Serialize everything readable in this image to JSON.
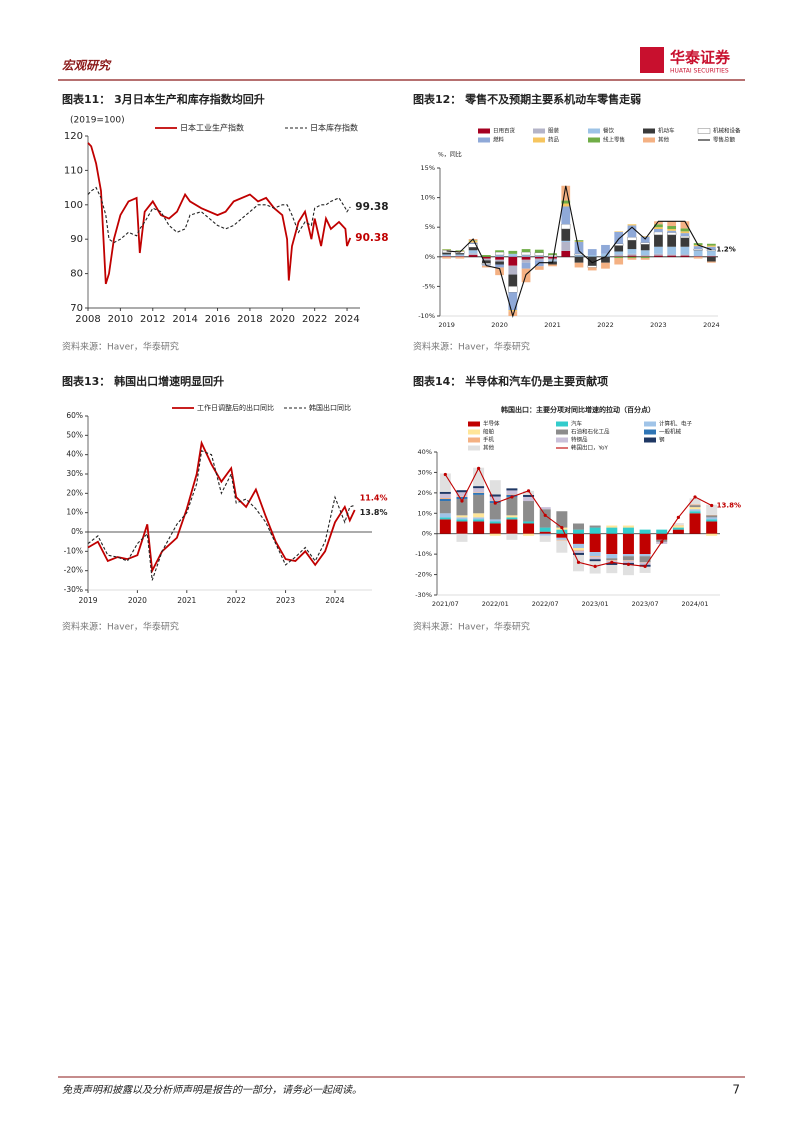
{
  "header": {
    "section": "宏观研究",
    "logo": "华泰证券",
    "logo_en": "HUATAI SECURITIES"
  },
  "footer": {
    "disclaimer": "免责声明和披露以及分析师声明是报告的一部分，请务必一起阅读。",
    "page": "7"
  },
  "chart_data": [
    {
      "type": "line",
      "title": "图表11： 3月日本生产和库存指数均回升",
      "subtitle": "(2019=100)",
      "source": "资料来源：Haver，华泰研究",
      "end_labels": true,
      "x": [
        2008,
        2008.2,
        2008.5,
        2008.8,
        2009.1,
        2009.3,
        2009.6,
        2010,
        2010.5,
        2011,
        2011.2,
        2011.5,
        2012,
        2012.5,
        2013,
        2013.5,
        2014,
        2014.3,
        2015,
        2016,
        2016.5,
        2017,
        2018,
        2018.5,
        2019,
        2019.5,
        2020,
        2020.3,
        2020.4,
        2020.6,
        2021,
        2021.4,
        2021.8,
        2022,
        2022.4,
        2022.7,
        2023,
        2023.5,
        2023.9,
        2024,
        2024.2
      ],
      "series": [
        {
          "name": "日本工业生产指数",
          "color": "#c00000",
          "values": [
            118,
            117,
            112,
            104,
            77,
            80,
            90,
            97,
            101,
            102,
            86,
            98,
            101,
            97,
            96,
            98,
            103,
            101,
            99,
            97,
            98,
            101,
            103,
            101,
            102,
            99,
            97,
            90,
            78,
            88,
            95,
            98,
            90,
            96,
            88,
            96,
            93,
            95,
            93,
            88,
            90.38
          ]
        },
        {
          "name": "日本库存指数",
          "color": "#222222",
          "dash": true,
          "values": [
            103,
            104,
            105,
            102,
            97,
            90,
            89,
            90,
            92,
            91,
            93,
            95,
            99,
            98,
            94,
            92,
            93,
            97,
            98,
            94,
            93,
            94,
            98,
            100,
            100,
            99,
            100,
            100,
            99,
            97,
            92,
            95,
            94,
            99,
            100,
            100,
            101,
            102,
            99,
            98,
            99.38
          ]
        }
      ],
      "xlim": [
        2008,
        2024.8
      ],
      "xticks": [
        2008,
        2010,
        2012,
        2014,
        2016,
        2018,
        2020,
        2022,
        2024
      ],
      "ylim": [
        70,
        120
      ],
      "yticks": [
        70,
        80,
        90,
        100,
        110,
        120
      ]
    },
    {
      "type": "bar",
      "stacked": true,
      "title": "图表12： 零售不及预期主要系机动车零售走弱",
      "subtitle": "%，同比",
      "source": "资料来源：Haver，华泰研究",
      "end_labels": true,
      "categories": [
        "2019",
        null,
        null,
        null,
        "2020",
        null,
        null,
        null,
        "2021",
        null,
        null,
        null,
        "2022",
        null,
        null,
        null,
        "2023",
        null,
        null,
        null,
        "2024"
      ],
      "series": [
        {
          "name": "日用百货",
          "color": "#a50021",
          "values": [
            0.1,
            0.1,
            0.3,
            -0.3,
            -0.5,
            -1.5,
            -0.5,
            -0.3,
            -0.3,
            1,
            0,
            0,
            0,
            0.1,
            0.2,
            0.1,
            0.2,
            0.2,
            0.2,
            0.1,
            0.1
          ]
        },
        {
          "name": "服装",
          "color": "#b4b4c8",
          "values": [
            0,
            0,
            0.3,
            -0.3,
            -0.3,
            -1.5,
            -0.5,
            -0.3,
            -0.3,
            1.5,
            0,
            0,
            0,
            0.3,
            0.3,
            0.2,
            0.3,
            0.2,
            0.2,
            0,
            0.1
          ]
        },
        {
          "name": "餐饮",
          "color": "#9dc3e6",
          "values": [
            0.3,
            0.3,
            0.5,
            0,
            0.3,
            0.5,
            0.3,
            0.2,
            -0.2,
            0.2,
            0.3,
            0.3,
            0.5,
            0.5,
            0.8,
            0.8,
            1.2,
            1.3,
            1.3,
            1,
            0.8
          ]
        },
        {
          "name": "机动车",
          "color": "#3a3a3a",
          "values": [
            0.3,
            0.2,
            0.5,
            -0.5,
            -0.5,
            -2,
            0,
            0,
            -0.5,
            2,
            -1,
            -1.5,
            -1,
            1,
            1.5,
            1,
            2,
            2,
            1.5,
            0,
            -0.8
          ]
        },
        {
          "name": "机械和设备",
          "color": "#ffffff",
          "values": [
            0.3,
            0.3,
            0.6,
            -0.2,
            0.5,
            -1,
            0.5,
            0.5,
            0.3,
            0.8,
            0.2,
            -0.3,
            0,
            0.3,
            0.5,
            0.3,
            0.5,
            0.4,
            0.3,
            0.2,
            0.2
          ]
        },
        {
          "name": "燃料",
          "color": "#8fa9d8",
          "values": [
            0.1,
            0,
            0.2,
            -0.2,
            -0.5,
            -3,
            -1,
            -1,
            0,
            3,
            2,
            1,
            1.5,
            2,
            2,
            1,
            0.5,
            0.3,
            0.5,
            0.5,
            0.5
          ]
        },
        {
          "name": "药品",
          "color": "#f6c55f",
          "values": [
            0.1,
            0.1,
            0.3,
            0,
            0,
            -0.2,
            0,
            0,
            0,
            0.5,
            0.1,
            0,
            0,
            0.1,
            0.2,
            0.1,
            0.3,
            0.3,
            0.3,
            0.2,
            0.2
          ]
        },
        {
          "name": "线上零售",
          "color": "#70ad47",
          "values": [
            0.1,
            0.1,
            0.1,
            0.3,
            0.3,
            0.5,
            0.5,
            0.5,
            0.3,
            0.5,
            0.2,
            0,
            0,
            -0.2,
            -0.2,
            -0.2,
            0.5,
            0.5,
            0.5,
            0.3,
            0.3
          ]
        },
        {
          "name": "其他",
          "color": "#f4b183",
          "values": [
            -0.3,
            -0.3,
            0.2,
            -0.3,
            -1.3,
            -0.8,
            -2.3,
            -0.6,
            -0.3,
            2.5,
            -0.8,
            -0.5,
            -1,
            -1.1,
            -0.3,
            -0.3,
            0.5,
            0.8,
            1.2,
            -0.3,
            -0.2
          ]
        },
        {
          "name": "零售总额",
          "color": "#111111",
          "type": "line",
          "values": [
            1,
            0.8,
            3,
            -1.5,
            -2,
            -10,
            -3,
            -1,
            -1,
            12,
            1,
            -1,
            0,
            3,
            5,
            3,
            6,
            6,
            6,
            2,
            1.2
          ],
          "value_labels": [
            null,
            null,
            null,
            null,
            null,
            null,
            null,
            null,
            null,
            null,
            null,
            null,
            null,
            null,
            null,
            null,
            null,
            null,
            null,
            null,
            "1.2%"
          ]
        }
      ],
      "ylim": [
        -10,
        15
      ],
      "yticks": [
        {
          "value": -10,
          "label": "-10%"
        },
        {
          "value": -5,
          "label": "-5%"
        },
        {
          "value": 0,
          "label": "0%"
        },
        {
          "value": 5,
          "label": "5%"
        },
        {
          "value": 10,
          "label": "10%"
        },
        {
          "value": 15,
          "label": "15%"
        }
      ]
    },
    {
      "type": "line",
      "title": "图表13： 韩国出口增速明显回升",
      "source": "资料来源：Haver，华泰研究",
      "end_labels": true,
      "x": [
        2019,
        2019.2,
        2019.4,
        2019.6,
        2019.8,
        2020,
        2020.2,
        2020.3,
        2020.5,
        2020.8,
        2021,
        2021.2,
        2021.3,
        2021.5,
        2021.7,
        2021.9,
        2022,
        2022.2,
        2022.4,
        2022.6,
        2022.8,
        2023,
        2023.2,
        2023.4,
        2023.6,
        2023.8,
        2024,
        2024.2,
        2024.3,
        2024.4
      ],
      "series": [
        {
          "name": "工作日调整后的出口同比",
          "color": "#c00000",
          "values": [
            -8,
            -5,
            -15,
            -13,
            -14,
            -12,
            4,
            -20,
            -10,
            -3,
            12,
            30,
            46,
            35,
            26,
            33,
            18,
            13,
            22,
            8,
            -5,
            -14,
            -15,
            -10,
            -17,
            -10,
            5,
            13,
            6,
            11.4
          ],
          "value_labels": [
            null,
            null,
            null,
            null,
            null,
            null,
            null,
            null,
            null,
            null,
            null,
            null,
            null,
            null,
            null,
            null,
            null,
            null,
            null,
            null,
            null,
            null,
            null,
            null,
            null,
            null,
            null,
            null,
            null,
            "11.4%"
          ]
        },
        {
          "name": "韩国出口同比",
          "color": "#222222",
          "dash": true,
          "values": [
            -6,
            -2,
            -12,
            -13,
            -15,
            -6,
            -1,
            -25,
            -10,
            4,
            10,
            25,
            42,
            40,
            20,
            30,
            15,
            17,
            12,
            5,
            -6,
            -17,
            -13,
            -8,
            -15,
            -5,
            18,
            5,
            13,
            13.8
          ],
          "value_labels": [
            null,
            null,
            null,
            null,
            null,
            null,
            null,
            null,
            null,
            null,
            null,
            null,
            null,
            null,
            null,
            null,
            null,
            null,
            null,
            null,
            null,
            null,
            null,
            null,
            null,
            null,
            null,
            null,
            null,
            "13.8%"
          ]
        }
      ],
      "xlim": [
        2019,
        2024.75
      ],
      "xticks": [
        2019,
        2020,
        2021,
        2022,
        2023,
        2024
      ],
      "ylim": [
        -30,
        60
      ],
      "yticks": [
        {
          "value": -30,
          "label": "-30%"
        },
        {
          "value": -20,
          "label": "-20%"
        },
        {
          "value": -10,
          "label": "-10%"
        },
        {
          "value": 0,
          "label": "0%"
        },
        {
          "value": 10,
          "label": "10%"
        },
        {
          "value": 20,
          "label": "20%"
        },
        {
          "value": 30,
          "label": "30%"
        },
        {
          "value": 40,
          "label": "40%"
        },
        {
          "value": 50,
          "label": "50%"
        },
        {
          "value": 60,
          "label": "60%"
        }
      ]
    },
    {
      "type": "bar",
      "stacked": true,
      "title": "图表14： 半导体和汽车仍是主要贡献项",
      "subtitle": "韩国出口：主要分项对同比增速的拉动（百分点）",
      "source": "资料来源：Haver，华泰研究",
      "end_labels": true,
      "categories": [
        "2021/07",
        null,
        null,
        "2022/01",
        null,
        null,
        "2022/07",
        null,
        null,
        "2023/01",
        null,
        null,
        "2023/07",
        null,
        null,
        "2024/01",
        null
      ],
      "series": [
        {
          "name": "半导体",
          "color": "#c00000",
          "values": [
            7,
            6,
            6,
            5,
            7,
            5,
            1,
            -2,
            -5,
            -9,
            -10,
            -10,
            -10,
            -3,
            2,
            10,
            6
          ]
        },
        {
          "name": "汽车",
          "color": "#33cccc",
          "values": [
            1,
            1,
            1,
            1,
            1,
            1,
            2,
            2,
            2,
            3,
            3,
            3,
            2,
            2,
            1,
            1,
            1
          ]
        },
        {
          "name": "计算机、电子",
          "color": "#a0c4e8",
          "values": [
            2,
            1,
            1,
            1,
            0,
            0,
            -1,
            -1,
            -2,
            -2,
            -2,
            -1,
            -1,
            0,
            0,
            1,
            1
          ]
        },
        {
          "name": "船舶",
          "color": "#ffe699",
          "values": [
            0,
            1,
            2,
            -1,
            1,
            -1,
            0,
            1,
            -1,
            0,
            1,
            1,
            0,
            0,
            1,
            1,
            -1
          ]
        },
        {
          "name": "石油和石化工品",
          "color": "#8c8c8c",
          "values": [
            6,
            8,
            9,
            8,
            9,
            10,
            9,
            8,
            3,
            1,
            -1,
            -2,
            -3,
            -1,
            0,
            1,
            1
          ]
        },
        {
          "name": "一般机械",
          "color": "#2e75b6",
          "values": [
            1,
            1,
            1,
            1,
            1,
            0,
            0,
            0,
            0,
            0,
            0,
            0,
            0,
            0,
            0,
            0,
            0
          ]
        },
        {
          "name": "手机",
          "color": "#f4b183",
          "values": [
            0.5,
            0.3,
            0.3,
            0.2,
            0.2,
            0,
            0,
            -0.3,
            -0.4,
            -0.5,
            -0.3,
            -0.3,
            -0.2,
            0,
            0.2,
            0.3,
            0.2
          ]
        },
        {
          "name": "特钢品",
          "color": "#c9c0d9",
          "values": [
            2,
            2,
            2,
            2,
            2,
            2,
            1,
            0,
            -1,
            -1,
            -1,
            -1,
            -1,
            -1,
            0,
            0,
            0
          ]
        },
        {
          "name": "钢",
          "color": "#1f3864",
          "values": [
            1,
            1,
            1,
            1,
            1,
            1,
            0,
            0,
            -1,
            -1,
            -1,
            -1,
            -1,
            0,
            0,
            0,
            0
          ]
        },
        {
          "name": "其他",
          "color": "#e0e0e0",
          "values": [
            9,
            -4,
            9,
            7,
            -3,
            2,
            -3,
            -6,
            -8,
            -6,
            -4,
            -5,
            -3,
            0,
            1,
            3,
            5
          ]
        },
        {
          "name": "韩国出口，YoY",
          "color": "#c00000",
          "type": "line",
          "markers": true,
          "values": [
            29,
            16,
            32,
            15,
            18,
            21,
            9,
            3,
            -14,
            -16,
            -14,
            -15,
            -16,
            -4,
            8,
            18,
            13.8
          ],
          "value_labels": [
            null,
            null,
            null,
            null,
            null,
            null,
            null,
            null,
            null,
            null,
            null,
            null,
            null,
            null,
            null,
            null,
            "13.8%"
          ]
        }
      ],
      "ylim": [
        -30,
        40
      ],
      "yticks": [
        {
          "value": -30,
          "label": "-30%"
        },
        {
          "value": -20,
          "label": "-20%"
        },
        {
          "value": -10,
          "label": "-10%"
        },
        {
          "value": 0,
          "label": "0%"
        },
        {
          "value": 10,
          "label": "10%"
        },
        {
          "value": 20,
          "label": "20%"
        },
        {
          "value": 30,
          "label": "30%"
        },
        {
          "value": 40,
          "label": "40%"
        }
      ]
    }
  ]
}
